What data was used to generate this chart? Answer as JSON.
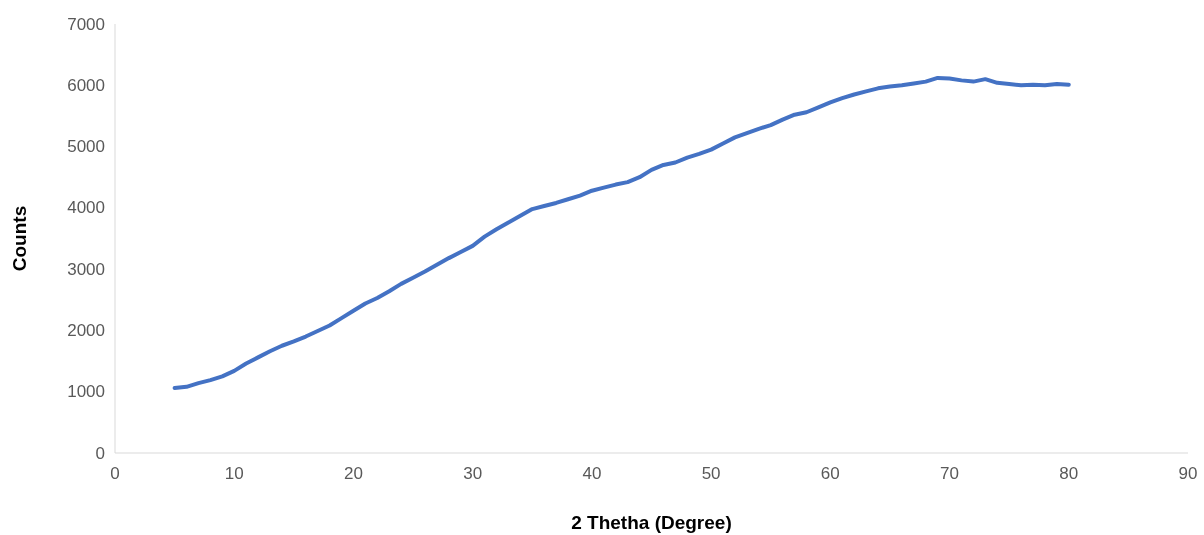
{
  "chart_data": {
    "type": "line",
    "xlabel": "2 Thetha (Degree)",
    "ylabel": "Counts",
    "xlim": [
      0,
      90
    ],
    "xticks": [
      0,
      10,
      20,
      30,
      40,
      50,
      60,
      70,
      80,
      90
    ],
    "ylim": [
      0,
      7000
    ],
    "yticks": [
      0,
      1000,
      2000,
      3000,
      4000,
      5000,
      6000,
      7000
    ],
    "grid": false,
    "series": [
      {
        "color": "#4472c4",
        "x": [
          5,
          6,
          7,
          8,
          9,
          10,
          11,
          12,
          13,
          14,
          15,
          16,
          17,
          18,
          19,
          20,
          21,
          22,
          23,
          24,
          25,
          26,
          27,
          28,
          29,
          30,
          31,
          32,
          33,
          34,
          35,
          36,
          37,
          38,
          39,
          40,
          41,
          42,
          43,
          44,
          45,
          46,
          47,
          48,
          49,
          50,
          51,
          52,
          53,
          54,
          55,
          56,
          57,
          58,
          59,
          60,
          61,
          62,
          63,
          64,
          65,
          66,
          67,
          68,
          69,
          70,
          71,
          72,
          73,
          74,
          75,
          76,
          77,
          78,
          79,
          80
        ],
        "values": [
          1060,
          1080,
          1140,
          1190,
          1250,
          1340,
          1460,
          1560,
          1660,
          1750,
          1820,
          1900,
          1990,
          2080,
          2200,
          2320,
          2440,
          2530,
          2640,
          2760,
          2860,
          2960,
          3070,
          3180,
          3280,
          3380,
          3530,
          3650,
          3760,
          3870,
          3980,
          4030,
          4080,
          4140,
          4200,
          4280,
          4330,
          4380,
          4420,
          4500,
          4620,
          4700,
          4740,
          4820,
          4880,
          4950,
          5050,
          5150,
          5220,
          5290,
          5350,
          5440,
          5520,
          5560,
          5640,
          5720,
          5790,
          5850,
          5900,
          5950,
          5980,
          6000,
          6030,
          6060,
          6120,
          6110,
          6080,
          6060,
          6100,
          6040,
          6020,
          6000,
          6010,
          6000,
          6020,
          6010
        ]
      }
    ]
  }
}
